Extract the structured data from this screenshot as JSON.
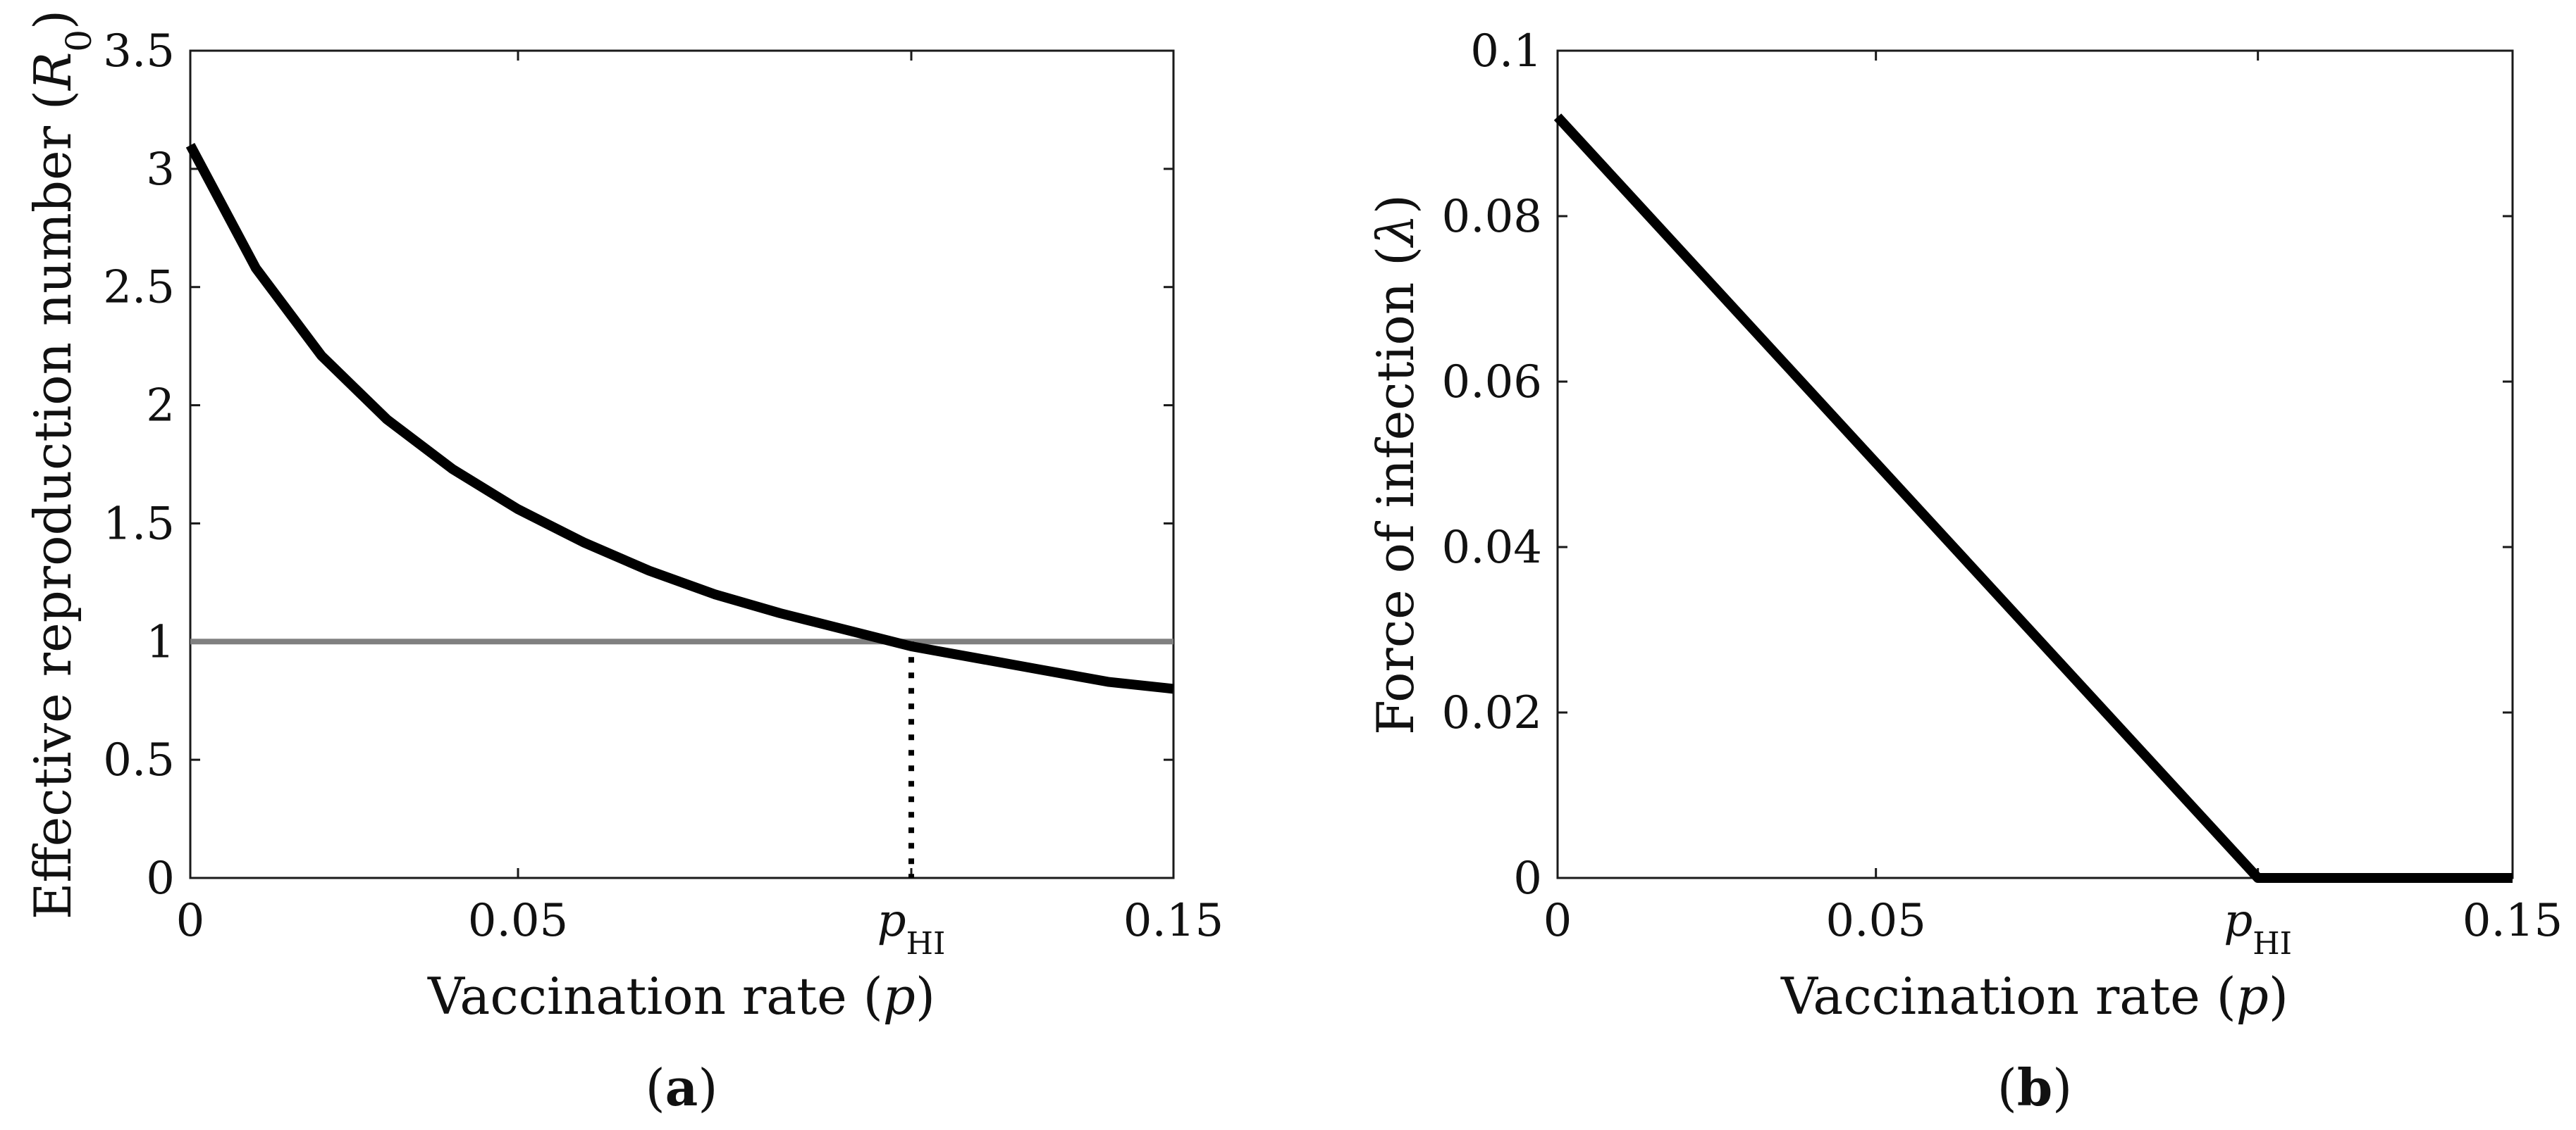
{
  "chart_data": [
    {
      "id": "a",
      "type": "line",
      "panel_label": "a",
      "xlabel": "Vaccination rate",
      "xlabel_symbol": "p",
      "ylabel": "Effective reproduction number",
      "ylabel_symbol": "R",
      "ylabel_subscript": "0",
      "xlim": [
        0,
        0.15
      ],
      "ylim": [
        0,
        3.5
      ],
      "x_ticks": [
        {
          "value": 0,
          "label": "0"
        },
        {
          "value": 0.05,
          "label": "0.05"
        },
        {
          "value": 0.11,
          "label": "p",
          "sub": "HI"
        },
        {
          "value": 0.15,
          "label": "0.15"
        }
      ],
      "y_ticks": [
        {
          "value": 0,
          "label": "0"
        },
        {
          "value": 0.5,
          "label": "0.5"
        },
        {
          "value": 1,
          "label": "1"
        },
        {
          "value": 1.5,
          "label": "1.5"
        },
        {
          "value": 2,
          "label": "2"
        },
        {
          "value": 2.5,
          "label": "2.5"
        },
        {
          "value": 3,
          "label": "3"
        },
        {
          "value": 3.5,
          "label": "3.5"
        }
      ],
      "series": [
        {
          "name": "Effective reproduction number",
          "color": "#000000",
          "x": [
            0,
            0.01,
            0.02,
            0.03,
            0.04,
            0.05,
            0.06,
            0.07,
            0.08,
            0.09,
            0.1,
            0.11,
            0.12,
            0.13,
            0.14,
            0.15
          ],
          "y": [
            3.1,
            2.58,
            2.21,
            1.94,
            1.73,
            1.56,
            1.42,
            1.3,
            1.2,
            1.12,
            1.05,
            0.98,
            0.93,
            0.88,
            0.83,
            0.8
          ]
        }
      ],
      "threshold": {
        "value": 1,
        "color": "#808080"
      },
      "marker_line": {
        "x": 0.11,
        "y": 1,
        "color": "#000000"
      }
    },
    {
      "id": "b",
      "type": "line",
      "panel_label": "b",
      "xlabel": "Vaccination rate",
      "xlabel_symbol": "p",
      "ylabel": "Force of infection",
      "ylabel_symbol": "λ",
      "xlim": [
        0,
        0.15
      ],
      "ylim": [
        0,
        0.1
      ],
      "x_ticks": [
        {
          "value": 0,
          "label": "0"
        },
        {
          "value": 0.05,
          "label": "0.05"
        },
        {
          "value": 0.11,
          "label": "p",
          "sub": "HI"
        },
        {
          "value": 0.15,
          "label": "0.15"
        }
      ],
      "y_ticks": [
        {
          "value": 0,
          "label": "0"
        },
        {
          "value": 0.02,
          "label": "0.02"
        },
        {
          "value": 0.04,
          "label": "0.04"
        },
        {
          "value": 0.06,
          "label": "0.06"
        },
        {
          "value": 0.08,
          "label": "0.08"
        },
        {
          "value": 0.1,
          "label": "0.1"
        }
      ],
      "series": [
        {
          "name": "Force of infection",
          "color": "#000000",
          "x": [
            0,
            0.11,
            0.15
          ],
          "y": [
            0.092,
            0,
            0
          ]
        }
      ]
    }
  ]
}
